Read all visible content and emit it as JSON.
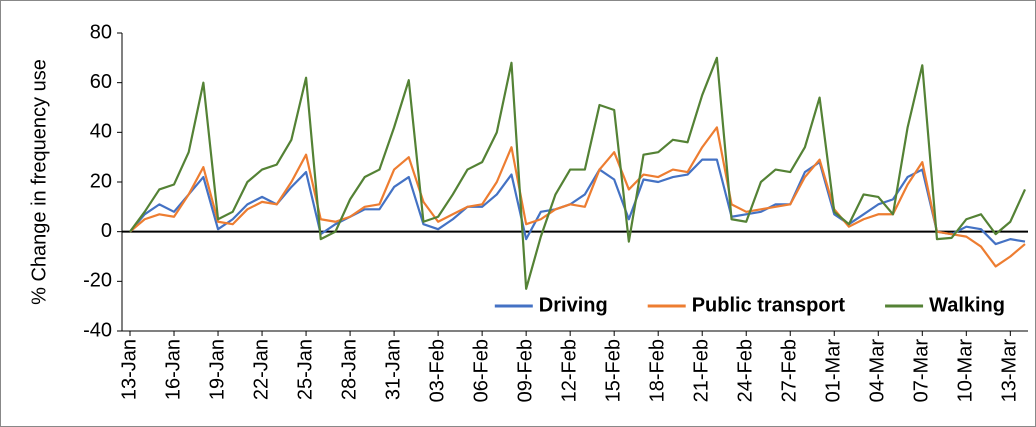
{
  "chart_data": {
    "type": "line",
    "y_label": "% Change in frequency use",
    "categories": [
      "13-Jan",
      null,
      null,
      "16-Jan",
      null,
      null,
      "19-Jan",
      null,
      null,
      "22-Jan",
      null,
      null,
      "25-Jan",
      null,
      null,
      "28-Jan",
      null,
      null,
      "31-Jan",
      null,
      null,
      "03-Feb",
      null,
      null,
      "06-Feb",
      null,
      null,
      "09-Feb",
      null,
      null,
      "12-Feb",
      null,
      null,
      "15-Feb",
      null,
      null,
      "18-Feb",
      null,
      null,
      "21-Feb",
      null,
      null,
      "24-Feb",
      null,
      null,
      "27-Feb",
      null,
      null,
      "01-Mar",
      null,
      null,
      "04-Mar",
      null,
      null,
      "07-Mar",
      null,
      null,
      "10-Mar",
      null,
      null,
      "13-Mar",
      null
    ],
    "series": [
      {
        "name": "Driving",
        "color": "#4472c4",
        "values": [
          0,
          7,
          11,
          8,
          15,
          22,
          1,
          5,
          11,
          14,
          11,
          18,
          24,
          -1,
          3,
          6,
          9,
          9,
          18,
          22,
          3,
          1,
          5,
          10,
          10,
          15,
          23,
          -3,
          8,
          9,
          11,
          15,
          25,
          21,
          5,
          21,
          20,
          22,
          23,
          29,
          29,
          6,
          7,
          8,
          11,
          11,
          24,
          28,
          7,
          3,
          7,
          11,
          13,
          22,
          25,
          0,
          -1,
          2,
          1,
          -5,
          -3,
          -4
        ]
      },
      {
        "name": "Public transport",
        "color": "#ed7d31",
        "values": [
          0,
          5,
          7,
          6,
          15,
          26,
          4,
          3,
          9,
          12,
          11,
          20,
          31,
          5,
          4,
          6,
          10,
          11,
          25,
          30,
          12,
          4,
          7,
          10,
          11,
          20,
          34,
          3,
          5,
          9,
          11,
          10,
          25,
          32,
          17,
          23,
          22,
          25,
          24,
          34,
          42,
          11,
          8,
          9,
          10,
          11,
          22,
          29,
          9,
          2,
          5,
          7,
          7,
          19,
          28,
          0,
          -1,
          -2,
          -6,
          -14,
          -10,
          -5
        ]
      },
      {
        "name": "Walking",
        "color": "#548235",
        "values": [
          0,
          8,
          17,
          19,
          32,
          60,
          5,
          8,
          20,
          25,
          27,
          37,
          62,
          -3,
          0,
          13,
          22,
          25,
          42,
          61,
          4,
          6,
          15,
          25,
          28,
          40,
          68,
          -23,
          -2,
          15,
          25,
          25,
          51,
          49,
          -4,
          31,
          32,
          37,
          36,
          55,
          70,
          5,
          4,
          20,
          25,
          24,
          34,
          54,
          8,
          3,
          15,
          14,
          7,
          42,
          67,
          -3,
          -2.5,
          5,
          7,
          -1,
          4,
          17
        ]
      }
    ],
    "ylim": [
      -40,
      80
    ],
    "yticks": [
      -40,
      -20,
      0,
      20,
      40,
      60,
      80
    ],
    "legend": "lower right"
  }
}
